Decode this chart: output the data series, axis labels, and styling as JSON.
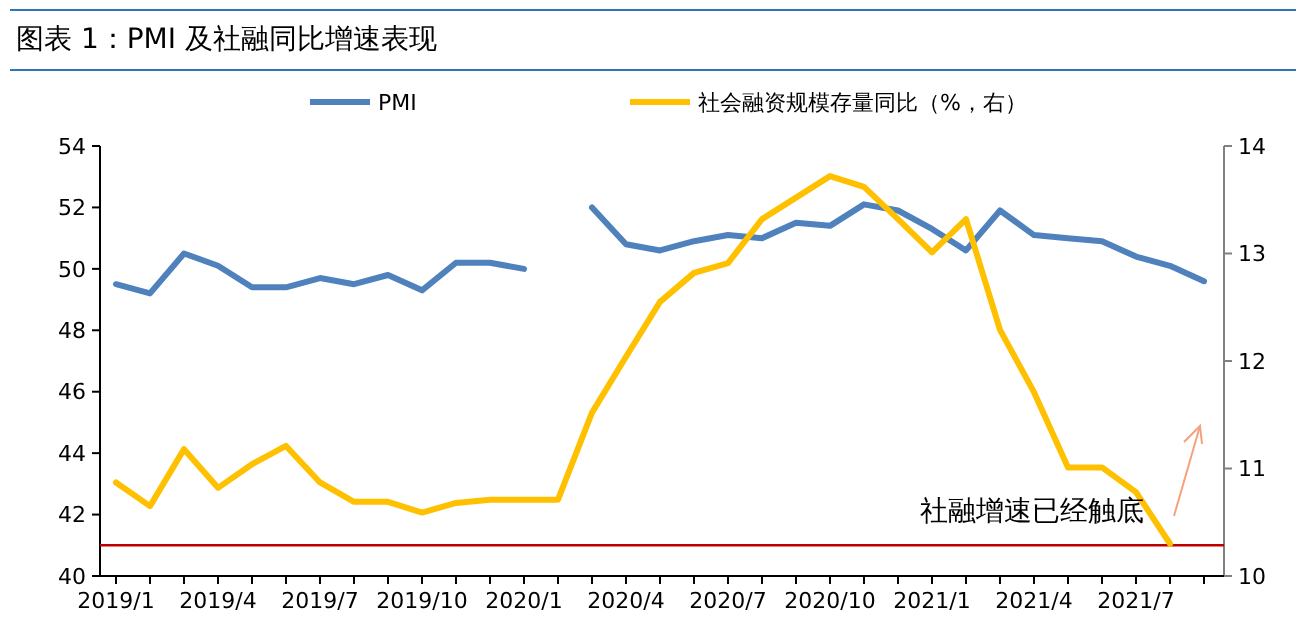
{
  "chart_data": {
    "type": "line",
    "title": "图表 1：PMI 及社融同比增速表现",
    "categories": [
      "2019/1",
      null,
      null,
      "2019/4",
      null,
      null,
      "2019/7",
      null,
      null,
      "2019/10",
      null,
      null,
      "2020/1",
      null,
      null,
      "2020/4",
      null,
      null,
      "2020/7",
      null,
      null,
      "2020/10",
      null,
      null,
      "2021/1",
      null,
      null,
      "2021/4",
      null,
      null,
      "2021/7",
      null,
      null
    ],
    "series": [
      {
        "name": "PMI",
        "color": "#4f81bd",
        "values": [
          49.5,
          49.2,
          50.5,
          50.1,
          49.4,
          49.4,
          49.7,
          49.5,
          49.8,
          49.3,
          50.2,
          50.2,
          50.0,
          null,
          52.0,
          50.8,
          50.6,
          50.9,
          51.1,
          51.0,
          51.5,
          51.4,
          52.1,
          51.9,
          51.3,
          50.6,
          51.9,
          51.1,
          51.0,
          50.9,
          50.4,
          50.1,
          49.6
        ]
      },
      {
        "name": "社会融资规模存量同比（%，右）",
        "color": "#ffc000",
        "axis": "y2",
        "values": [
          10.87,
          10.65,
          11.18,
          10.82,
          11.04,
          11.21,
          10.87,
          10.69,
          10.69,
          10.59,
          10.68,
          10.71,
          10.71,
          10.71,
          11.52,
          12.04,
          12.55,
          12.82,
          12.91,
          13.32,
          13.52,
          13.72,
          13.62,
          13.32,
          13.01,
          13.32,
          12.29,
          11.71,
          11.01,
          11.01,
          10.78,
          10.3,
          null
        ]
      }
    ],
    "ylim": [
      40,
      54
    ],
    "yticks": [
      40,
      42,
      44,
      46,
      48,
      50,
      52,
      54
    ],
    "y2lim": [
      10,
      14
    ],
    "y2ticks": [
      10,
      11,
      12,
      13,
      14
    ],
    "ref_lines": [
      {
        "axis": "y",
        "value": 41,
        "color": "#c00000"
      }
    ],
    "annotations": [
      "社融增速已经触底"
    ],
    "legend": "top",
    "grid": false,
    "marker": "none",
    "line_style": "solid"
  }
}
